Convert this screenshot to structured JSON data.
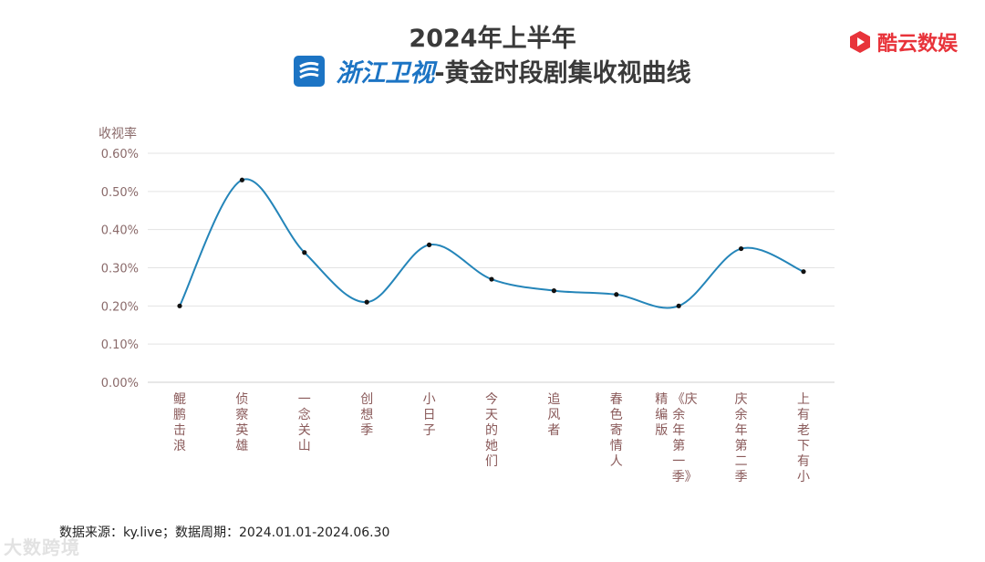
{
  "header": {
    "title_line1": "2024年上半年",
    "channel": "浙江卫视",
    "title_rest": "-黄金时段剧集收视曲线",
    "brand": "酷云数娱"
  },
  "colors": {
    "line": "#2485b9",
    "grid": "#e3e3e3",
    "brand": "#e8333a",
    "channel": "#1c74c4"
  },
  "chart_data": {
    "type": "line",
    "title": "2024年上半年 浙江卫视-黄金时段剧集收视曲线",
    "ylabel": "收视率",
    "xlabel": "",
    "ylim": [
      0,
      0.6
    ],
    "yticks": [
      "0.00%",
      "0.10%",
      "0.20%",
      "0.30%",
      "0.40%",
      "0.50%",
      "0.60%"
    ],
    "categories": [
      "鲲鹏击浪",
      "侦察英雄",
      "一念关山",
      "创想季",
      "小日子",
      "今天的她们",
      "追风者",
      "春色寄情人",
      "《庆余年第一季》精编版",
      "庆余年第二季",
      "上有老下有小"
    ],
    "category_display": [
      [
        "鲲鹏击浪"
      ],
      [
        "侦察英雄"
      ],
      [
        "一念关山"
      ],
      [
        "创想季"
      ],
      [
        "小日子"
      ],
      [
        "今天的她们"
      ],
      [
        "追风者"
      ],
      [
        "春色寄情人"
      ],
      [
        "《庆余年第一季》",
        "精编版"
      ],
      [
        "庆余年第二季"
      ],
      [
        "上有老下有小"
      ]
    ],
    "series": [
      {
        "name": "收视率(%)",
        "values": [
          0.2,
          0.53,
          0.34,
          0.21,
          0.36,
          0.27,
          0.24,
          0.23,
          0.2,
          0.35,
          0.29
        ]
      }
    ],
    "grid": true,
    "legend": "none"
  },
  "footer": {
    "source": "数据来源：ky.live；数据周期：2024.01.01-2024.06.30"
  },
  "watermark": "大数跨境"
}
